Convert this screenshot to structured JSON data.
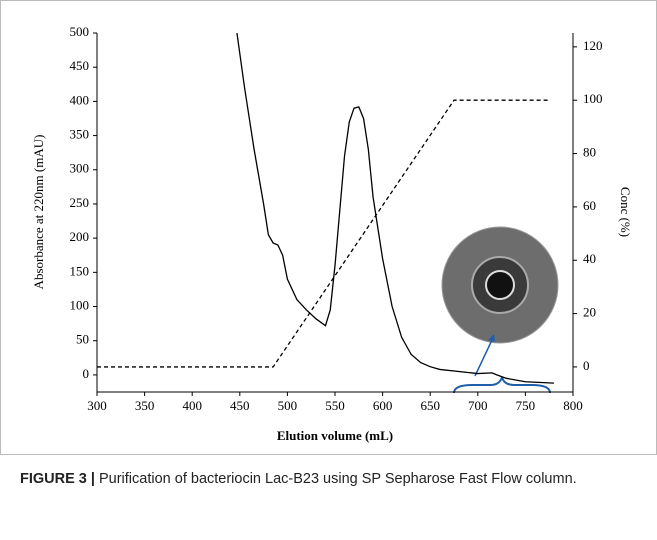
{
  "chart_data": {
    "type": "line",
    "xlabel": "Elution volume (mL)",
    "ylabel": "Absorbance at 220nm (mAU)",
    "y2label": "Conc (%)",
    "xlim": [
      300,
      800
    ],
    "xticks": [
      300,
      350,
      400,
      450,
      500,
      550,
      600,
      650,
      700,
      750,
      800
    ],
    "ylim": [
      -25,
      500
    ],
    "yticks": [
      0,
      50,
      100,
      150,
      200,
      250,
      300,
      350,
      400,
      450,
      500
    ],
    "y2lim": [
      -9.4,
      125.2
    ],
    "y2ticks": [
      0,
      20,
      40,
      60,
      80,
      100,
      120
    ],
    "series": [
      {
        "color": "#000000",
        "dash": "none",
        "axis": "y",
        "x": [
          447,
          455,
          465,
          475,
          480,
          485,
          490,
          495,
          500,
          510,
          520,
          530,
          540,
          545,
          550,
          555,
          560,
          565,
          570,
          575,
          580,
          585,
          590,
          600,
          610,
          620,
          630,
          640,
          650,
          660,
          680,
          700,
          715,
          720,
          730,
          750,
          780
        ],
        "values": [
          500,
          420,
          330,
          250,
          205,
          193,
          190,
          175,
          140,
          110,
          95,
          82,
          72,
          95,
          160,
          240,
          320,
          370,
          390,
          392,
          375,
          330,
          260,
          170,
          100,
          55,
          30,
          18,
          12,
          8,
          5,
          2,
          3,
          0,
          -5,
          -10,
          -12
        ]
      },
      {
        "color": "#000000",
        "dash": "4,3",
        "axis": "y2",
        "x": [
          300,
          485,
          675,
          775
        ],
        "values": [
          0,
          0,
          100,
          100
        ]
      }
    ]
  },
  "caption": {
    "label": "FIGURE 3 |",
    "text": " Purification of bacteriocin Lac-B23 using SP Sepharose Fast Flow column."
  }
}
